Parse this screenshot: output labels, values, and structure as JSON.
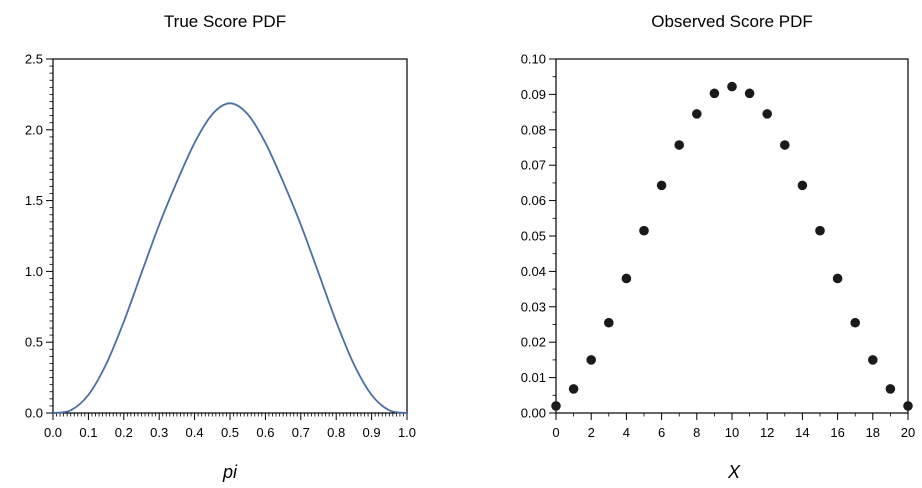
{
  "chart_data": [
    {
      "type": "line",
      "title": "True Score PDF",
      "xlabel": "pi",
      "ylabel": "",
      "xlim": [
        0,
        1
      ],
      "ylim": [
        0,
        2.5
      ],
      "grid": false,
      "line_color": "#4a6fa5",
      "xticks": [
        "0.0",
        "0.1",
        "0.2",
        "0.3",
        "0.4",
        "0.5",
        "0.6",
        "0.7",
        "0.8",
        "0.9",
        "1.0"
      ],
      "yticks": [
        "0.0",
        "0.5",
        "1.0",
        "1.5",
        "2.0",
        "2.5"
      ],
      "x": [
        0.0,
        0.05,
        0.1,
        0.15,
        0.2,
        0.25,
        0.3,
        0.35,
        0.4,
        0.45,
        0.5,
        0.55,
        0.6,
        0.65,
        0.7,
        0.75,
        0.8,
        0.85,
        0.9,
        0.95,
        1.0
      ],
      "y": [
        0.0,
        0.019,
        0.128,
        0.344,
        0.645,
        0.989,
        1.33,
        1.633,
        1.908,
        2.11,
        2.187,
        2.11,
        1.908,
        1.633,
        1.33,
        0.989,
        0.645,
        0.344,
        0.128,
        0.019,
        0.0
      ]
    },
    {
      "type": "scatter",
      "title": "Observed Score PDF",
      "xlabel": "X",
      "ylabel": "",
      "xlim": [
        0,
        20
      ],
      "ylim": [
        0,
        0.1
      ],
      "grid": false,
      "point_color": "#1a1a1a",
      "xticks": [
        "0",
        "2",
        "4",
        "6",
        "8",
        "10",
        "12",
        "14",
        "16",
        "18",
        "20"
      ],
      "yticks": [
        "0.00",
        "0.01",
        "0.02",
        "0.03",
        "0.04",
        "0.05",
        "0.06",
        "0.07",
        "0.08",
        "0.09",
        "0.10"
      ],
      "x": [
        0,
        1,
        2,
        3,
        4,
        5,
        6,
        7,
        8,
        9,
        10,
        11,
        12,
        13,
        14,
        15,
        16,
        17,
        18,
        19,
        20
      ],
      "y": [
        0.002,
        0.0068,
        0.015,
        0.0255,
        0.038,
        0.0515,
        0.0643,
        0.0757,
        0.0845,
        0.0903,
        0.0922,
        0.0903,
        0.0845,
        0.0757,
        0.0643,
        0.0515,
        0.038,
        0.0255,
        0.015,
        0.0068,
        0.002
      ]
    }
  ]
}
